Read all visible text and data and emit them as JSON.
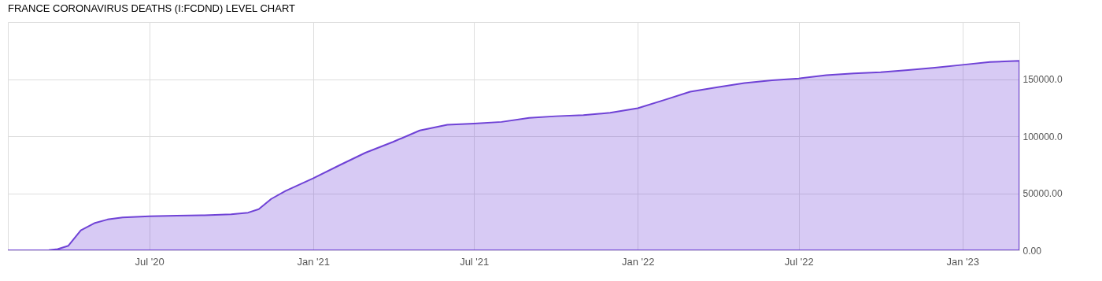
{
  "chart_data": {
    "type": "area",
    "title": "FRANCE CORONAVIRUS DEATHS (I:FCDND) LEVEL CHART",
    "x": [
      "2020-01-24",
      "2020-03-01",
      "2020-03-10",
      "2020-03-20",
      "2020-04-01",
      "2020-04-15",
      "2020-05-01",
      "2020-05-15",
      "2020-06-01",
      "2020-07-01",
      "2020-08-01",
      "2020-09-01",
      "2020-10-01",
      "2020-10-20",
      "2020-11-01",
      "2020-11-15",
      "2020-12-01",
      "2021-01-01",
      "2021-02-01",
      "2021-03-01",
      "2021-04-01",
      "2021-05-01",
      "2021-06-01",
      "2021-07-01",
      "2021-08-01",
      "2021-09-01",
      "2021-10-01",
      "2021-11-01",
      "2021-12-01",
      "2022-01-01",
      "2022-02-01",
      "2022-03-01",
      "2022-04-01",
      "2022-05-01",
      "2022-06-01",
      "2022-07-01",
      "2022-08-01",
      "2022-09-01",
      "2022-10-01",
      "2022-11-01",
      "2022-12-01",
      "2023-01-01",
      "2023-02-01",
      "2023-03-06"
    ],
    "series": [
      {
        "color": "#6f42d6",
        "values": [
          0,
          0,
          100,
          1000,
          4000,
          17500,
          24000,
          27000,
          28800,
          29800,
          30300,
          30700,
          31500,
          33000,
          36000,
          45000,
          52000,
          63000,
          75000,
          85500,
          95000,
          105000,
          110000,
          111000,
          112500,
          116000,
          117500,
          118500,
          120500,
          124500,
          132000,
          139000,
          143000,
          146500,
          149000,
          150500,
          153500,
          155000,
          156000,
          158000,
          160000,
          162500,
          165000,
          166000
        ]
      }
    ],
    "xlim": [
      "2020-01-24",
      "2023-03-06"
    ],
    "xticks": [
      {
        "value": "2020-07-01",
        "label": "Jul '20"
      },
      {
        "value": "2021-01-01",
        "label": "Jan '21"
      },
      {
        "value": "2021-07-01",
        "label": "Jul '21"
      },
      {
        "value": "2022-01-01",
        "label": "Jan '22"
      },
      {
        "value": "2022-07-01",
        "label": "Jul '22"
      },
      {
        "value": "2023-01-01",
        "label": "Jan '23"
      }
    ],
    "ylim": [
      0,
      200000
    ],
    "yticks": [
      {
        "value": 0,
        "label": "0.00"
      },
      {
        "value": 50000,
        "label": "50000.00"
      },
      {
        "value": 100000,
        "label": "100000.0"
      },
      {
        "value": 150000,
        "label": "150000.0"
      }
    ],
    "grid": true
  }
}
